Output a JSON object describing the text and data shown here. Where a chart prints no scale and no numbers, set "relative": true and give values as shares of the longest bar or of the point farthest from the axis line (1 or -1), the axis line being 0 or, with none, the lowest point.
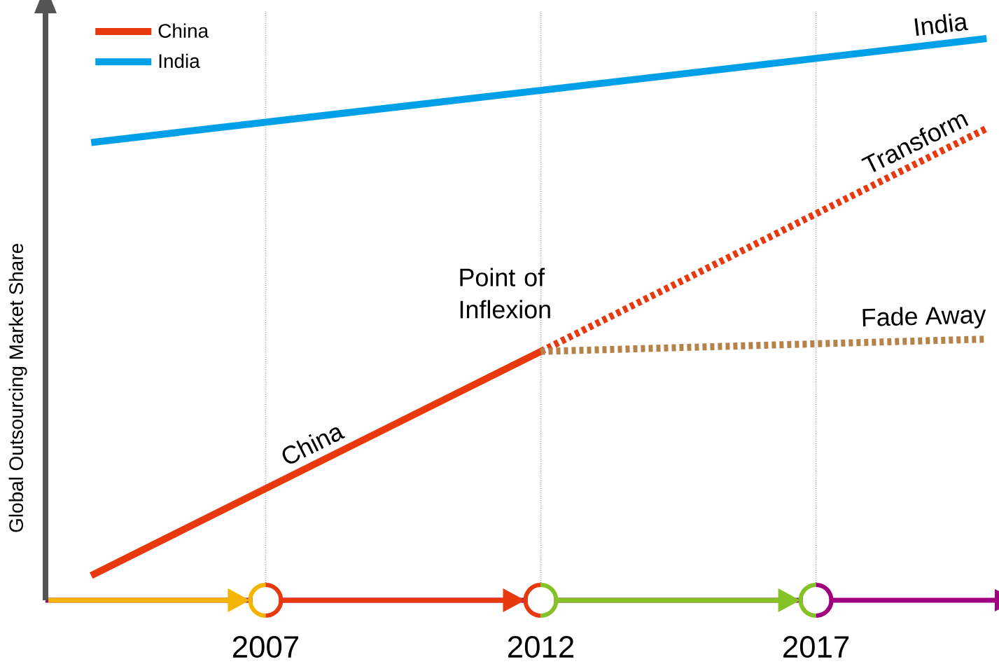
{
  "chart_data": {
    "type": "line",
    "relative": true,
    "ylabel": "Global Outsourcing Market Share",
    "xlim": [
      2003,
      2020.3
    ],
    "xticks": [
      2007,
      2012,
      2017
    ],
    "grid": "x",
    "legend": "top left",
    "tick_labels": "x",
    "series": [
      {
        "name": "China",
        "color": "#e8380d",
        "x": [
          2003.83,
          2012
        ],
        "values": [
          0.044,
          0.443
        ]
      },
      {
        "name": "India",
        "color": "#00a0e9",
        "x": [
          2003.83,
          2020.1
        ],
        "values": [
          0.815,
          1
        ]
      },
      {
        "name": "Transform",
        "color": "#e8380d",
        "line_style": "dotted",
        "x": [
          2012,
          2020.1
        ],
        "values": [
          0.443,
          0.84
        ]
      },
      {
        "name": "Fade Away",
        "color": "#b5834a",
        "line_style": "dotted",
        "x": [
          2012,
          2020.1
        ],
        "values": [
          0.443,
          0.465
        ]
      }
    ],
    "annotations": [
      {
        "text": "China",
        "x": 2008,
        "y": 0.247
      },
      {
        "text": "India",
        "x": 2019.3,
        "y": 0.991
      },
      {
        "text": "Point of Inflexion",
        "x": 2012,
        "y": 0.443
      }
    ]
  }
}
